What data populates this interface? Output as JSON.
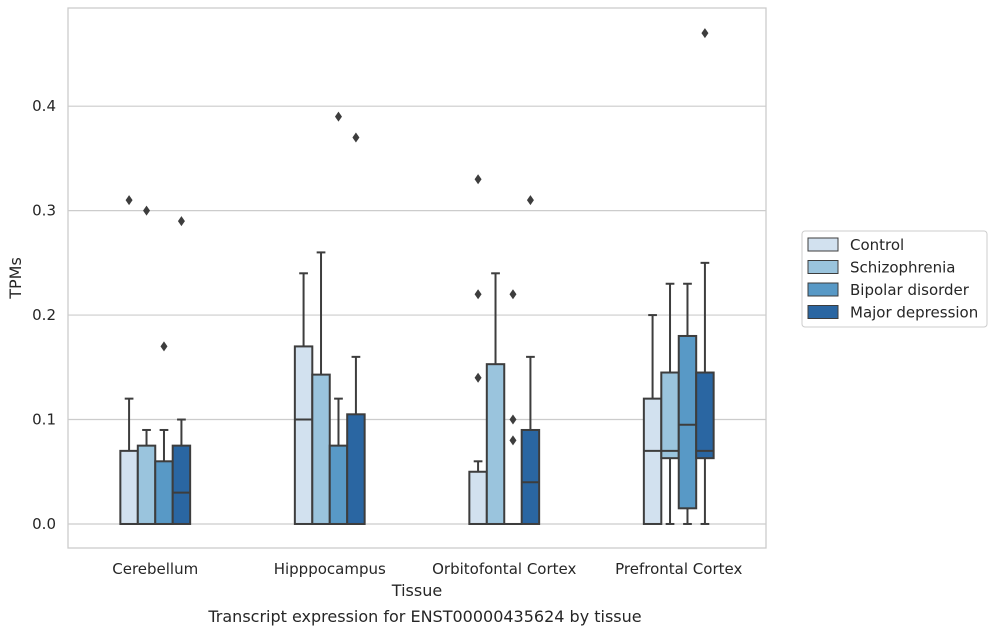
{
  "chart_data": {
    "type": "boxplot",
    "xlabel": "Tissue",
    "ylabel": "TPMs",
    "caption": "Transcript expression for ENST00000435624 by tissue",
    "ylim": [
      -0.023,
      0.494
    ],
    "yticks": [
      0.0,
      0.1,
      0.2,
      0.3,
      0.4
    ],
    "ytick_labels": [
      "0.0",
      "0.1",
      "0.2",
      "0.3",
      "0.4"
    ],
    "grid": "horizontal",
    "legend_position": "right",
    "categories": [
      "Cerebellum",
      "Hipppocampus",
      "Orbitofontal Cortex",
      "Prefrontal Cortex"
    ],
    "series": [
      {
        "name": "Control",
        "color": "#d2e1ef",
        "boxes": [
          {
            "whislo": 0.0,
            "q1": 0.0,
            "med": 0.0,
            "q3": 0.07,
            "whishi": 0.12,
            "fliers": [
              0.31
            ]
          },
          {
            "whislo": 0.0,
            "q1": 0.0,
            "med": 0.1,
            "q3": 0.17,
            "whishi": 0.24,
            "fliers": []
          },
          {
            "whislo": 0.0,
            "q1": 0.0,
            "med": 0.0,
            "q3": 0.05,
            "whishi": 0.06,
            "fliers": [
              0.14,
              0.22,
              0.33
            ]
          },
          {
            "whislo": 0.0,
            "q1": 0.0,
            "med": 0.07,
            "q3": 0.12,
            "whishi": 0.2,
            "fliers": []
          }
        ]
      },
      {
        "name": "Schizophrenia",
        "color": "#9ac4dd",
        "boxes": [
          {
            "whislo": 0.0,
            "q1": 0.0,
            "med": 0.0,
            "q3": 0.075,
            "whishi": 0.09,
            "fliers": [
              0.3
            ]
          },
          {
            "whislo": 0.0,
            "q1": 0.0,
            "med": 0.0,
            "q3": 0.143,
            "whishi": 0.26,
            "fliers": []
          },
          {
            "whislo": 0.0,
            "q1": 0.0,
            "med": 0.0,
            "q3": 0.153,
            "whishi": 0.24,
            "fliers": []
          },
          {
            "whislo": 0.0,
            "q1": 0.063,
            "med": 0.07,
            "q3": 0.145,
            "whishi": 0.23,
            "fliers": []
          }
        ]
      },
      {
        "name": "Bipolar disorder",
        "color": "#5899c6",
        "boxes": [
          {
            "whislo": 0.0,
            "q1": 0.0,
            "med": 0.0,
            "q3": 0.06,
            "whishi": 0.09,
            "fliers": [
              0.17
            ]
          },
          {
            "whislo": 0.0,
            "q1": 0.0,
            "med": 0.0,
            "q3": 0.075,
            "whishi": 0.12,
            "fliers": [
              0.39
            ]
          },
          {
            "whislo": 0.0,
            "q1": 0.0,
            "med": 0.0,
            "q3": 0.0,
            "whishi": 0.0,
            "fliers": [
              0.08,
              0.1,
              0.22
            ]
          },
          {
            "whislo": 0.0,
            "q1": 0.015,
            "med": 0.095,
            "q3": 0.18,
            "whishi": 0.23,
            "fliers": []
          }
        ]
      },
      {
        "name": "Major depression",
        "color": "#2a66a2",
        "boxes": [
          {
            "whislo": 0.0,
            "q1": 0.0,
            "med": 0.03,
            "q3": 0.075,
            "whishi": 0.1,
            "fliers": [
              0.29
            ]
          },
          {
            "whislo": 0.0,
            "q1": 0.0,
            "med": 0.0,
            "q3": 0.105,
            "whishi": 0.16,
            "fliers": [
              0.37
            ]
          },
          {
            "whislo": 0.0,
            "q1": 0.0,
            "med": 0.04,
            "q3": 0.09,
            "whishi": 0.16,
            "fliers": [
              0.31
            ]
          },
          {
            "whislo": 0.0,
            "q1": 0.063,
            "med": 0.07,
            "q3": 0.145,
            "whishi": 0.25,
            "fliers": [
              0.47
            ]
          }
        ]
      }
    ]
  }
}
